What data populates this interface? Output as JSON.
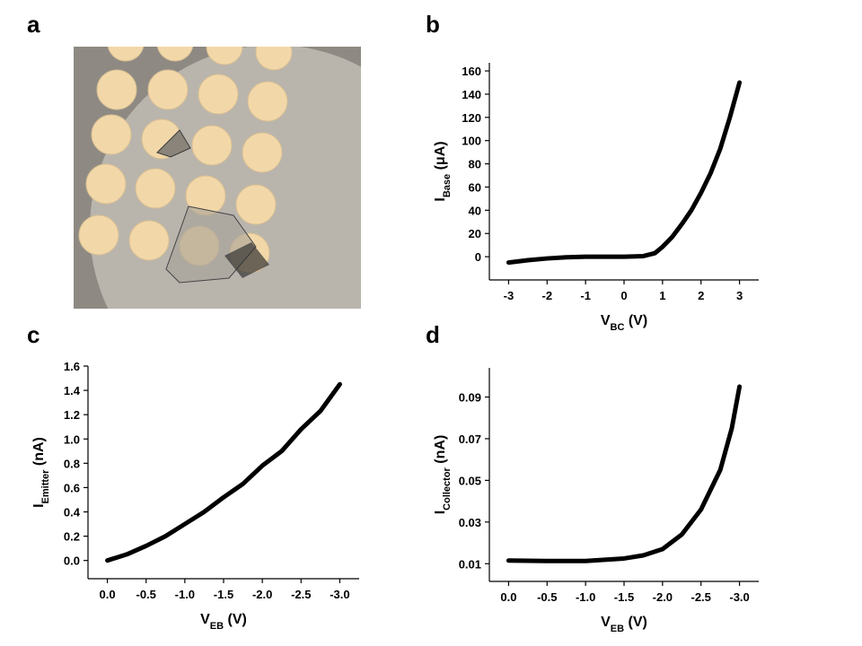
{
  "panel_labels": [
    "a",
    "b",
    "c",
    "d"
  ],
  "chart_data": [
    {
      "type": "line",
      "xlabel": [
        "V",
        "BC",
        " (V)"
      ],
      "ylabel": [
        "I",
        "Base",
        " (μA)"
      ],
      "x": [
        -3,
        -2.5,
        -2,
        -1.5,
        -1,
        -0.5,
        0,
        0.5,
        0.8,
        1,
        1.25,
        1.5,
        1.75,
        2,
        2.25,
        2.5,
        2.75,
        3
      ],
      "series": [
        {
          "color": "#000000",
          "values": [
            -5,
            -3,
            -1.5,
            -0.5,
            0,
            0,
            0,
            0.5,
            3,
            8.5,
            17,
            28,
            40,
            55,
            72,
            93,
            120,
            150
          ]
        }
      ],
      "xlim": [
        -3.5,
        3.5
      ],
      "ylim": [
        -20,
        167
      ],
      "xticks": [
        -3,
        -2,
        -1,
        0,
        1,
        2,
        3
      ],
      "yticks": [
        0,
        20,
        40,
        60,
        80,
        100,
        120,
        140,
        160
      ]
    },
    {
      "type": "line",
      "xlabel": [
        "V",
        "EB",
        " (V)"
      ],
      "ylabel": [
        "I",
        "Emitter",
        " (nA)"
      ],
      "x": [
        0,
        -0.25,
        -0.5,
        -0.75,
        -1,
        -1.25,
        -1.5,
        -1.75,
        -2,
        -2.25,
        -2.5,
        -2.75,
        -3
      ],
      "series": [
        {
          "color": "#000000",
          "values": [
            0,
            0.05,
            0.12,
            0.2,
            0.3,
            0.4,
            0.52,
            0.63,
            0.78,
            0.9,
            1.08,
            1.23,
            1.45
          ]
        }
      ],
      "xlim": [
        0.25,
        -3.25
      ],
      "ylim": [
        -0.15,
        1.6
      ],
      "xticks": [
        {
          "value": 0,
          "label": "0.0"
        },
        -0.5,
        {
          "value": -1,
          "label": "-1.0"
        },
        -1.5,
        {
          "value": -2,
          "label": "-2.0"
        },
        -2.5,
        {
          "value": -3,
          "label": "-3.0"
        }
      ],
      "yticks": [
        {
          "value": 0,
          "label": "0.0"
        },
        0.2,
        0.4,
        0.6,
        0.8,
        {
          "value": 1,
          "label": "1.0"
        },
        1.2,
        1.4,
        1.6
      ]
    },
    {
      "type": "line",
      "xlabel": [
        "V",
        "EB",
        " (V)"
      ],
      "ylabel": [
        "I",
        "Collector",
        " (nA)"
      ],
      "x": [
        0,
        -0.5,
        -1,
        -1.5,
        -1.75,
        -2,
        -2.25,
        -2.5,
        -2.75,
        -2.9,
        -3
      ],
      "series": [
        {
          "color": "#000000",
          "values": [
            0.0115,
            0.0113,
            0.0113,
            0.0125,
            0.014,
            0.017,
            0.024,
            0.036,
            0.055,
            0.075,
            0.095
          ]
        }
      ],
      "xlim": [
        0.25,
        -3.25
      ],
      "ylim": [
        0.0015,
        0.104
      ],
      "xticks": [
        {
          "value": 0,
          "label": "0.0"
        },
        -0.5,
        {
          "value": -1,
          "label": "-1.0"
        },
        -1.5,
        {
          "value": -2,
          "label": "-2.0"
        },
        -2.5,
        {
          "value": -3,
          "label": "-3.0"
        }
      ],
      "yticks": [
        0.01,
        0.03,
        0.05,
        0.07,
        0.09
      ]
    }
  ]
}
